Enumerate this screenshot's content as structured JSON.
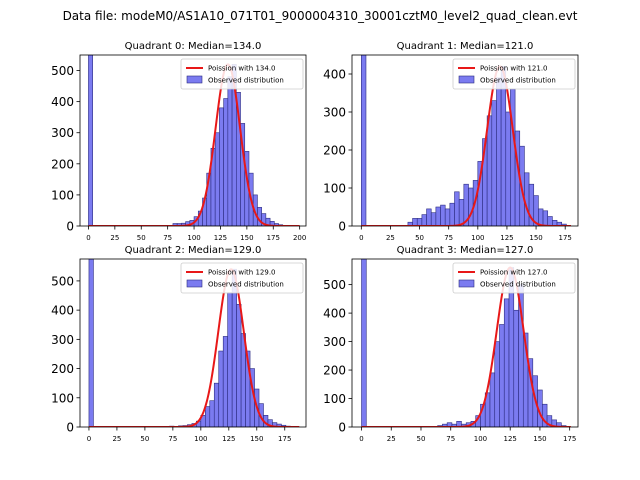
{
  "suptitle": "Data file: modeM0/AS1A10_071T01_9000004310_30001cztM0_level2_quad_clean.evt",
  "colors": {
    "bar_fill": "#7b7bf0",
    "bar_edge": "#2c2c80",
    "poisson_line": "#e81818",
    "axis": "#000000"
  },
  "chart_data": [
    {
      "type": "bar",
      "title": "Quadrant 0: Median=134.0",
      "xlim": [
        -8,
        206
      ],
      "ylim": [
        0,
        550
      ],
      "xticks": [
        0,
        25,
        50,
        75,
        100,
        125,
        150,
        175,
        200
      ],
      "yticks": [
        0,
        100,
        200,
        300,
        400,
        500
      ],
      "legend": [
        "Poission with 134.0",
        "Observed distribution"
      ],
      "legend_loc": "upper right",
      "bin_width": 4,
      "zero_bin_value": 550,
      "median": 134.0,
      "peak": 520,
      "bins": [
        [
          76,
          2
        ],
        [
          80,
          8
        ],
        [
          84,
          8
        ],
        [
          88,
          9
        ],
        [
          92,
          14
        ],
        [
          96,
          18
        ],
        [
          100,
          30
        ],
        [
          104,
          48
        ],
        [
          108,
          90
        ],
        [
          112,
          170
        ],
        [
          116,
          250
        ],
        [
          120,
          300
        ],
        [
          124,
          380
        ],
        [
          128,
          410
        ],
        [
          132,
          480
        ],
        [
          136,
          520
        ],
        [
          140,
          430
        ],
        [
          144,
          330
        ],
        [
          148,
          240
        ],
        [
          152,
          170
        ],
        [
          156,
          100
        ],
        [
          160,
          60
        ],
        [
          164,
          40
        ],
        [
          168,
          25
        ],
        [
          172,
          15
        ],
        [
          176,
          8
        ],
        [
          180,
          4
        ],
        [
          184,
          2
        ]
      ]
    },
    {
      "type": "bar",
      "title": "Quadrant 1: Median=121.0",
      "xlim": [
        -8,
        186
      ],
      "ylim": [
        0,
        450
      ],
      "xticks": [
        0,
        25,
        50,
        75,
        100,
        125,
        150,
        175
      ],
      "yticks": [
        0,
        100,
        200,
        300,
        400
      ],
      "legend": [
        "Poission with 121.0",
        "Observed distribution"
      ],
      "legend_loc": "upper right",
      "bin_width": 4,
      "zero_bin_value": 450,
      "median": 121.0,
      "peak": 420,
      "bins": [
        [
          40,
          10
        ],
        [
          44,
          20
        ],
        [
          48,
          20
        ],
        [
          52,
          30
        ],
        [
          56,
          45
        ],
        [
          60,
          35
        ],
        [
          64,
          50
        ],
        [
          68,
          55
        ],
        [
          72,
          45
        ],
        [
          76,
          60
        ],
        [
          80,
          90
        ],
        [
          84,
          70
        ],
        [
          88,
          110
        ],
        [
          92,
          100
        ],
        [
          96,
          120
        ],
        [
          100,
          170
        ],
        [
          104,
          230
        ],
        [
          108,
          290
        ],
        [
          112,
          330
        ],
        [
          116,
          390
        ],
        [
          120,
          420
        ],
        [
          124,
          300
        ],
        [
          128,
          360
        ],
        [
          132,
          250
        ],
        [
          136,
          210
        ],
        [
          140,
          140
        ],
        [
          144,
          110
        ],
        [
          148,
          80
        ],
        [
          152,
          45
        ],
        [
          156,
          40
        ],
        [
          160,
          25
        ],
        [
          164,
          15
        ],
        [
          168,
          10
        ],
        [
          172,
          5
        ]
      ]
    },
    {
      "type": "bar",
      "title": "Quadrant 2: Median=129.0",
      "xlim": [
        -8,
        194
      ],
      "ylim": [
        0,
        575
      ],
      "xticks": [
        0,
        25,
        50,
        75,
        100,
        125,
        150,
        175
      ],
      "yticks": [
        0,
        100,
        200,
        300,
        400,
        500
      ],
      "legend": [
        "Poission with 129.0",
        "Observed distribution"
      ],
      "legend_loc": "upper right",
      "bin_width": 4,
      "zero_bin_value": 575,
      "median": 129.0,
      "peak": 540,
      "bins": [
        [
          72,
          3
        ],
        [
          80,
          4
        ],
        [
          84,
          5
        ],
        [
          88,
          8
        ],
        [
          92,
          12
        ],
        [
          96,
          20
        ],
        [
          100,
          40
        ],
        [
          104,
          70
        ],
        [
          108,
          90
        ],
        [
          112,
          150
        ],
        [
          116,
          260
        ],
        [
          120,
          310
        ],
        [
          124,
          460
        ],
        [
          128,
          540
        ],
        [
          132,
          420
        ],
        [
          136,
          320
        ],
        [
          140,
          260
        ],
        [
          144,
          200
        ],
        [
          148,
          130
        ],
        [
          152,
          80
        ],
        [
          156,
          40
        ],
        [
          160,
          25
        ],
        [
          164,
          15
        ],
        [
          168,
          10
        ],
        [
          172,
          6
        ],
        [
          176,
          3
        ]
      ]
    },
    {
      "type": "bar",
      "title": "Quadrant 3: Median=127.0",
      "xlim": [
        -8,
        182
      ],
      "ylim": [
        0,
        590
      ],
      "xticks": [
        0,
        25,
        50,
        75,
        100,
        125,
        150,
        175
      ],
      "yticks": [
        0,
        100,
        200,
        300,
        400,
        500
      ],
      "legend": [
        "Poission with 127.0",
        "Observed distribution"
      ],
      "legend_loc": "upper right",
      "bin_width": 4,
      "zero_bin_value": 590,
      "median": 127.0,
      "peak": 560,
      "bins": [
        [
          64,
          5
        ],
        [
          68,
          10
        ],
        [
          72,
          15
        ],
        [
          76,
          10
        ],
        [
          80,
          20
        ],
        [
          84,
          10
        ],
        [
          88,
          15
        ],
        [
          92,
          20
        ],
        [
          96,
          40
        ],
        [
          100,
          80
        ],
        [
          104,
          120
        ],
        [
          108,
          190
        ],
        [
          112,
          300
        ],
        [
          116,
          360
        ],
        [
          120,
          450
        ],
        [
          124,
          560
        ],
        [
          128,
          410
        ],
        [
          132,
          500
        ],
        [
          136,
          330
        ],
        [
          140,
          240
        ],
        [
          144,
          180
        ],
        [
          148,
          130
        ],
        [
          152,
          80
        ],
        [
          156,
          40
        ],
        [
          160,
          25
        ],
        [
          164,
          15
        ],
        [
          168,
          5
        ]
      ]
    }
  ]
}
